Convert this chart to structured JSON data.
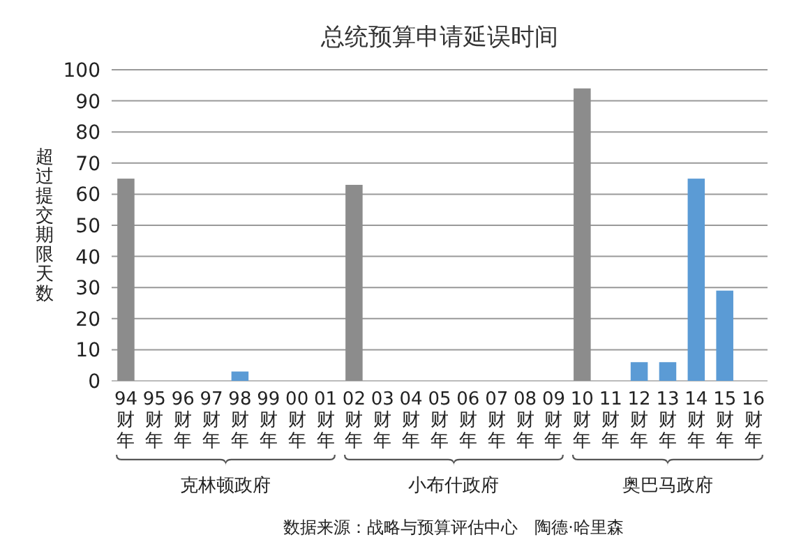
{
  "chart_data": {
    "type": "bar",
    "title": "总统预算申请延误时间",
    "ylabel": "超过提交期限天数",
    "categories": [
      "94财年",
      "95财年",
      "96财年",
      "97财年",
      "98财年",
      "99财年",
      "00财年",
      "01财年",
      "02财年",
      "03财年",
      "04财年",
      "05财年",
      "06财年",
      "07财年",
      "08财年",
      "09财年",
      "10财年",
      "11财年",
      "12财年",
      "13财年",
      "14财年",
      "15财年",
      "16财年"
    ],
    "values": [
      65,
      0,
      0,
      0,
      3,
      0,
      0,
      0,
      63,
      0,
      0,
      0,
      0,
      0,
      0,
      0,
      94,
      0,
      6,
      6,
      65,
      29,
      0
    ],
    "colors": [
      "#8c8c8c",
      "#8c8c8c",
      "#8c8c8c",
      "#8c8c8c",
      "#5b9bd5",
      "#8c8c8c",
      "#8c8c8c",
      "#8c8c8c",
      "#8c8c8c",
      "#8c8c8c",
      "#8c8c8c",
      "#8c8c8c",
      "#8c8c8c",
      "#8c8c8c",
      "#8c8c8c",
      "#8c8c8c",
      "#8c8c8c",
      "#5b9bd5",
      "#5b9bd5",
      "#5b9bd5",
      "#5b9bd5",
      "#5b9bd5",
      "#5b9bd5"
    ],
    "ylim": [
      0,
      100
    ],
    "yticks": [
      0,
      10,
      20,
      30,
      40,
      50,
      60,
      70,
      80,
      90,
      100
    ],
    "grid": "y",
    "annotations": [
      "克林顿政府",
      "小布什政府",
      "奥巴马政府",
      "数据来源：战略与预算评估中心　陶德·哈里森"
    ]
  }
}
